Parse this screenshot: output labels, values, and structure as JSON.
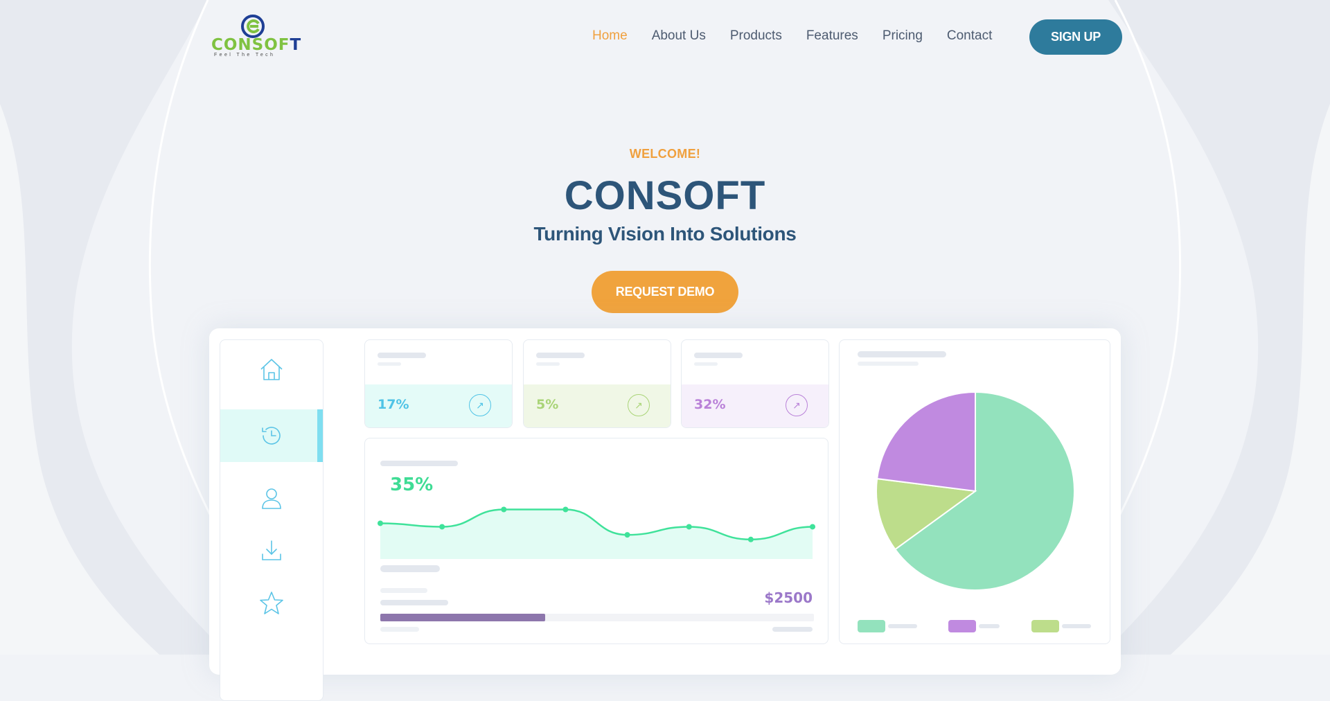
{
  "brand": {
    "logo_word": "CONSOF",
    "logo_word_last": "T",
    "tagline": "Feel The Tech",
    "green": "#7fc241",
    "blue": "#1f3f95"
  },
  "nav": {
    "items": [
      {
        "label": "Home",
        "active": true
      },
      {
        "label": "About Us"
      },
      {
        "label": "Products"
      },
      {
        "label": "Features"
      },
      {
        "label": "Pricing"
      },
      {
        "label": "Contact"
      }
    ],
    "signup_label": "SIGN UP",
    "active_color": "#f0a03e"
  },
  "hero": {
    "kicker": "WELCOME!",
    "title": "CONSOFT",
    "subtitle": "Turning Vision Into Solutions",
    "cta_label": "REQUEST DEMO"
  },
  "dashboard": {
    "sidebar_icons": [
      "home-icon",
      "history-icon",
      "user-icon",
      "download-icon",
      "star-icon"
    ],
    "active_sidebar_index": 1,
    "stats": [
      {
        "value": "17%",
        "color": "#4fc3e6",
        "band": "#e4fbf8",
        "arrow_icon": "trend-up-icon"
      },
      {
        "value": "5%",
        "color": "#a9d477",
        "band": "#f0f7e6",
        "arrow_icon": "trend-up-icon"
      },
      {
        "value": "32%",
        "color": "#b981d8",
        "band": "#f6f0fb",
        "arrow_icon": "trend-up-icon"
      }
    ],
    "line_card": {
      "headline": "35%",
      "amount": "$2500",
      "progress": 0.38,
      "line_color": "#3fe29a",
      "area_color": "#e2fcf4"
    },
    "pie_colors": [
      "#93e2bd",
      "#bddd8b",
      "#c08ae0"
    ]
  },
  "chart_data": [
    {
      "type": "line",
      "x": [
        1,
        2,
        3,
        4,
        5,
        6,
        7,
        8
      ],
      "values": [
        55,
        52,
        67,
        67,
        45,
        52,
        41,
        52
      ],
      "ylim": [
        0,
        100
      ],
      "grid": false
    },
    {
      "type": "pie",
      "values": [
        65,
        12,
        23
      ],
      "colors": [
        "#93e2bd",
        "#bddd8b",
        "#c08ae0"
      ]
    }
  ]
}
